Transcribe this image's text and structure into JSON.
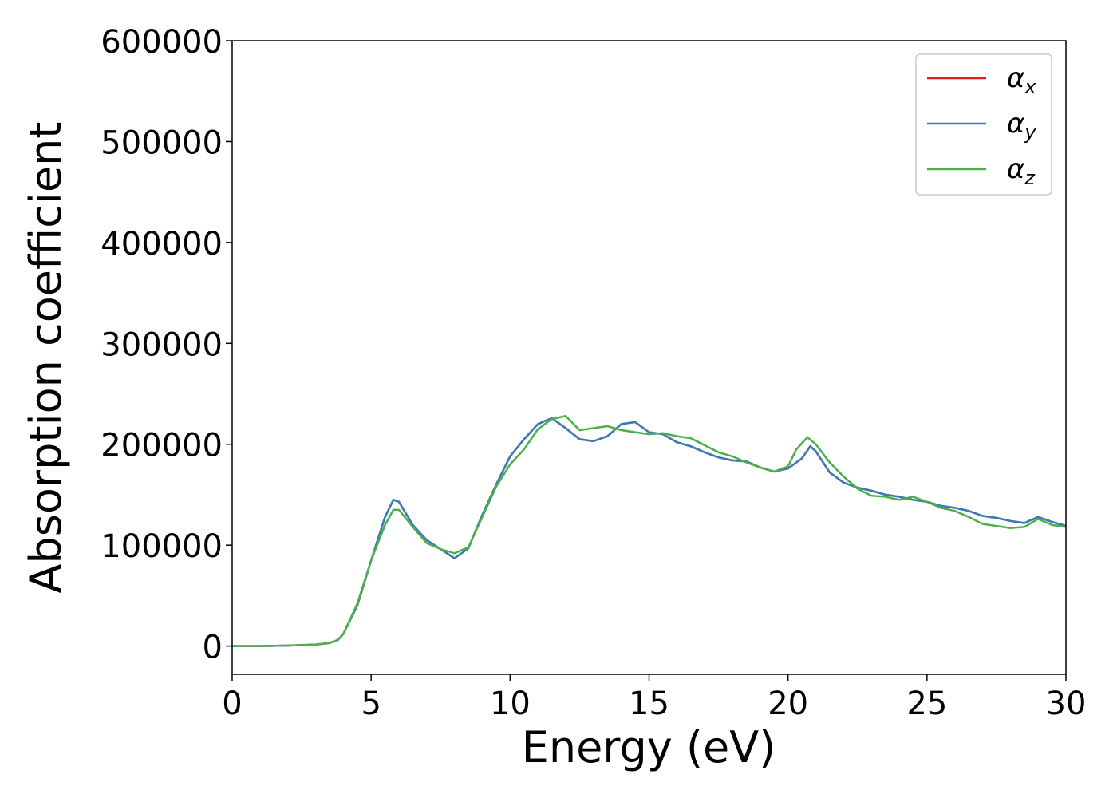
{
  "chart_data": {
    "type": "line",
    "xlabel": "Energy (eV)",
    "ylabel": "Absorption coefficient",
    "xlim": [
      0,
      30
    ],
    "xticks": [
      0,
      5,
      10,
      15,
      20,
      25,
      30
    ],
    "ylim": [
      -28000,
      600000
    ],
    "yticks": [
      0,
      100000,
      200000,
      300000,
      400000,
      500000,
      600000
    ],
    "legend": "upper right",
    "series": [
      {
        "name": "αx",
        "color": "#e41a1c",
        "x": [
          0,
          1,
          2,
          3,
          3.5,
          3.8,
          4,
          4.5,
          5,
          5.5,
          5.8,
          6,
          6.5,
          7,
          7.5,
          8,
          8.5,
          9,
          9.5,
          10,
          10.5,
          11,
          11.5,
          12,
          12.5,
          13,
          13.5,
          14,
          14.5,
          15,
          15.5,
          16,
          16.5,
          17,
          17.5,
          18,
          18.5,
          19,
          19.5,
          20,
          20.5,
          20.8,
          21,
          21.5,
          22,
          22.5,
          23,
          23.5,
          24,
          24.5,
          25,
          25.5,
          26,
          26.5,
          27,
          27.5,
          28,
          28.5,
          29,
          29.5,
          30
        ],
        "values": [
          0,
          0,
          500,
          1500,
          3000,
          6000,
          12000,
          40000,
          85000,
          128000,
          145000,
          143000,
          120000,
          105000,
          96000,
          87000,
          97000,
          130000,
          160000,
          188000,
          205000,
          220000,
          226000,
          216000,
          205000,
          203000,
          208000,
          220000,
          222000,
          212000,
          210000,
          202000,
          198000,
          192000,
          187000,
          184000,
          183000,
          177000,
          173000,
          176000,
          186000,
          198000,
          193000,
          172000,
          162000,
          157000,
          154000,
          150000,
          148000,
          145000,
          143000,
          139000,
          137000,
          134000,
          129000,
          127000,
          124000,
          122000,
          128000,
          123000,
          119000
        ]
      },
      {
        "name": "αy",
        "color": "#377eb8",
        "x": [
          0,
          1,
          2,
          3,
          3.5,
          3.8,
          4,
          4.5,
          5,
          5.5,
          5.8,
          6,
          6.5,
          7,
          7.5,
          8,
          8.5,
          9,
          9.5,
          10,
          10.5,
          11,
          11.5,
          12,
          12.5,
          13,
          13.5,
          14,
          14.5,
          15,
          15.5,
          16,
          16.5,
          17,
          17.5,
          18,
          18.5,
          19,
          19.5,
          20,
          20.5,
          20.8,
          21,
          21.5,
          22,
          22.5,
          23,
          23.5,
          24,
          24.5,
          25,
          25.5,
          26,
          26.5,
          27,
          27.5,
          28,
          28.5,
          29,
          29.5,
          30
        ],
        "values": [
          0,
          0,
          500,
          1500,
          3000,
          6000,
          12000,
          40000,
          85000,
          128000,
          145000,
          143000,
          120000,
          105000,
          96000,
          87000,
          97000,
          130000,
          160000,
          188000,
          205000,
          220000,
          226000,
          216000,
          205000,
          203000,
          208000,
          220000,
          222000,
          212000,
          210000,
          202000,
          198000,
          192000,
          187000,
          184000,
          183000,
          177000,
          173000,
          176000,
          186000,
          198000,
          193000,
          172000,
          162000,
          157000,
          154000,
          150000,
          148000,
          145000,
          143000,
          139000,
          137000,
          134000,
          129000,
          127000,
          124000,
          122000,
          128000,
          123000,
          119000
        ]
      },
      {
        "name": "αz",
        "color": "#4daf4a",
        "x": [
          0,
          1,
          2,
          3,
          3.5,
          3.8,
          4,
          4.5,
          5,
          5.5,
          5.8,
          6,
          6.5,
          7,
          7.5,
          8,
          8.5,
          9,
          9.5,
          10,
          10.5,
          11,
          11.5,
          12,
          12.5,
          13,
          13.5,
          14,
          14.5,
          15,
          15.5,
          16,
          16.5,
          17,
          17.5,
          18,
          18.5,
          19,
          19.5,
          20,
          20.3,
          20.7,
          21,
          21.5,
          22,
          22.5,
          23,
          23.5,
          24,
          24.5,
          25,
          25.5,
          26,
          26.5,
          27,
          27.5,
          28,
          28.5,
          29,
          29.5,
          30
        ],
        "values": [
          0,
          0,
          500,
          1500,
          3000,
          6000,
          12000,
          42000,
          85000,
          120000,
          135000,
          135000,
          118000,
          102000,
          96000,
          92000,
          98000,
          128000,
          158000,
          180000,
          195000,
          215000,
          225000,
          228000,
          214000,
          216000,
          218000,
          214000,
          212000,
          210000,
          211000,
          208000,
          206000,
          199000,
          192000,
          188000,
          182000,
          177000,
          173000,
          178000,
          195000,
          207000,
          200000,
          182000,
          168000,
          156000,
          149000,
          148000,
          145000,
          148000,
          143000,
          137000,
          134000,
          128000,
          121000,
          119000,
          117000,
          118000,
          126000,
          120000,
          118000
        ]
      }
    ]
  }
}
